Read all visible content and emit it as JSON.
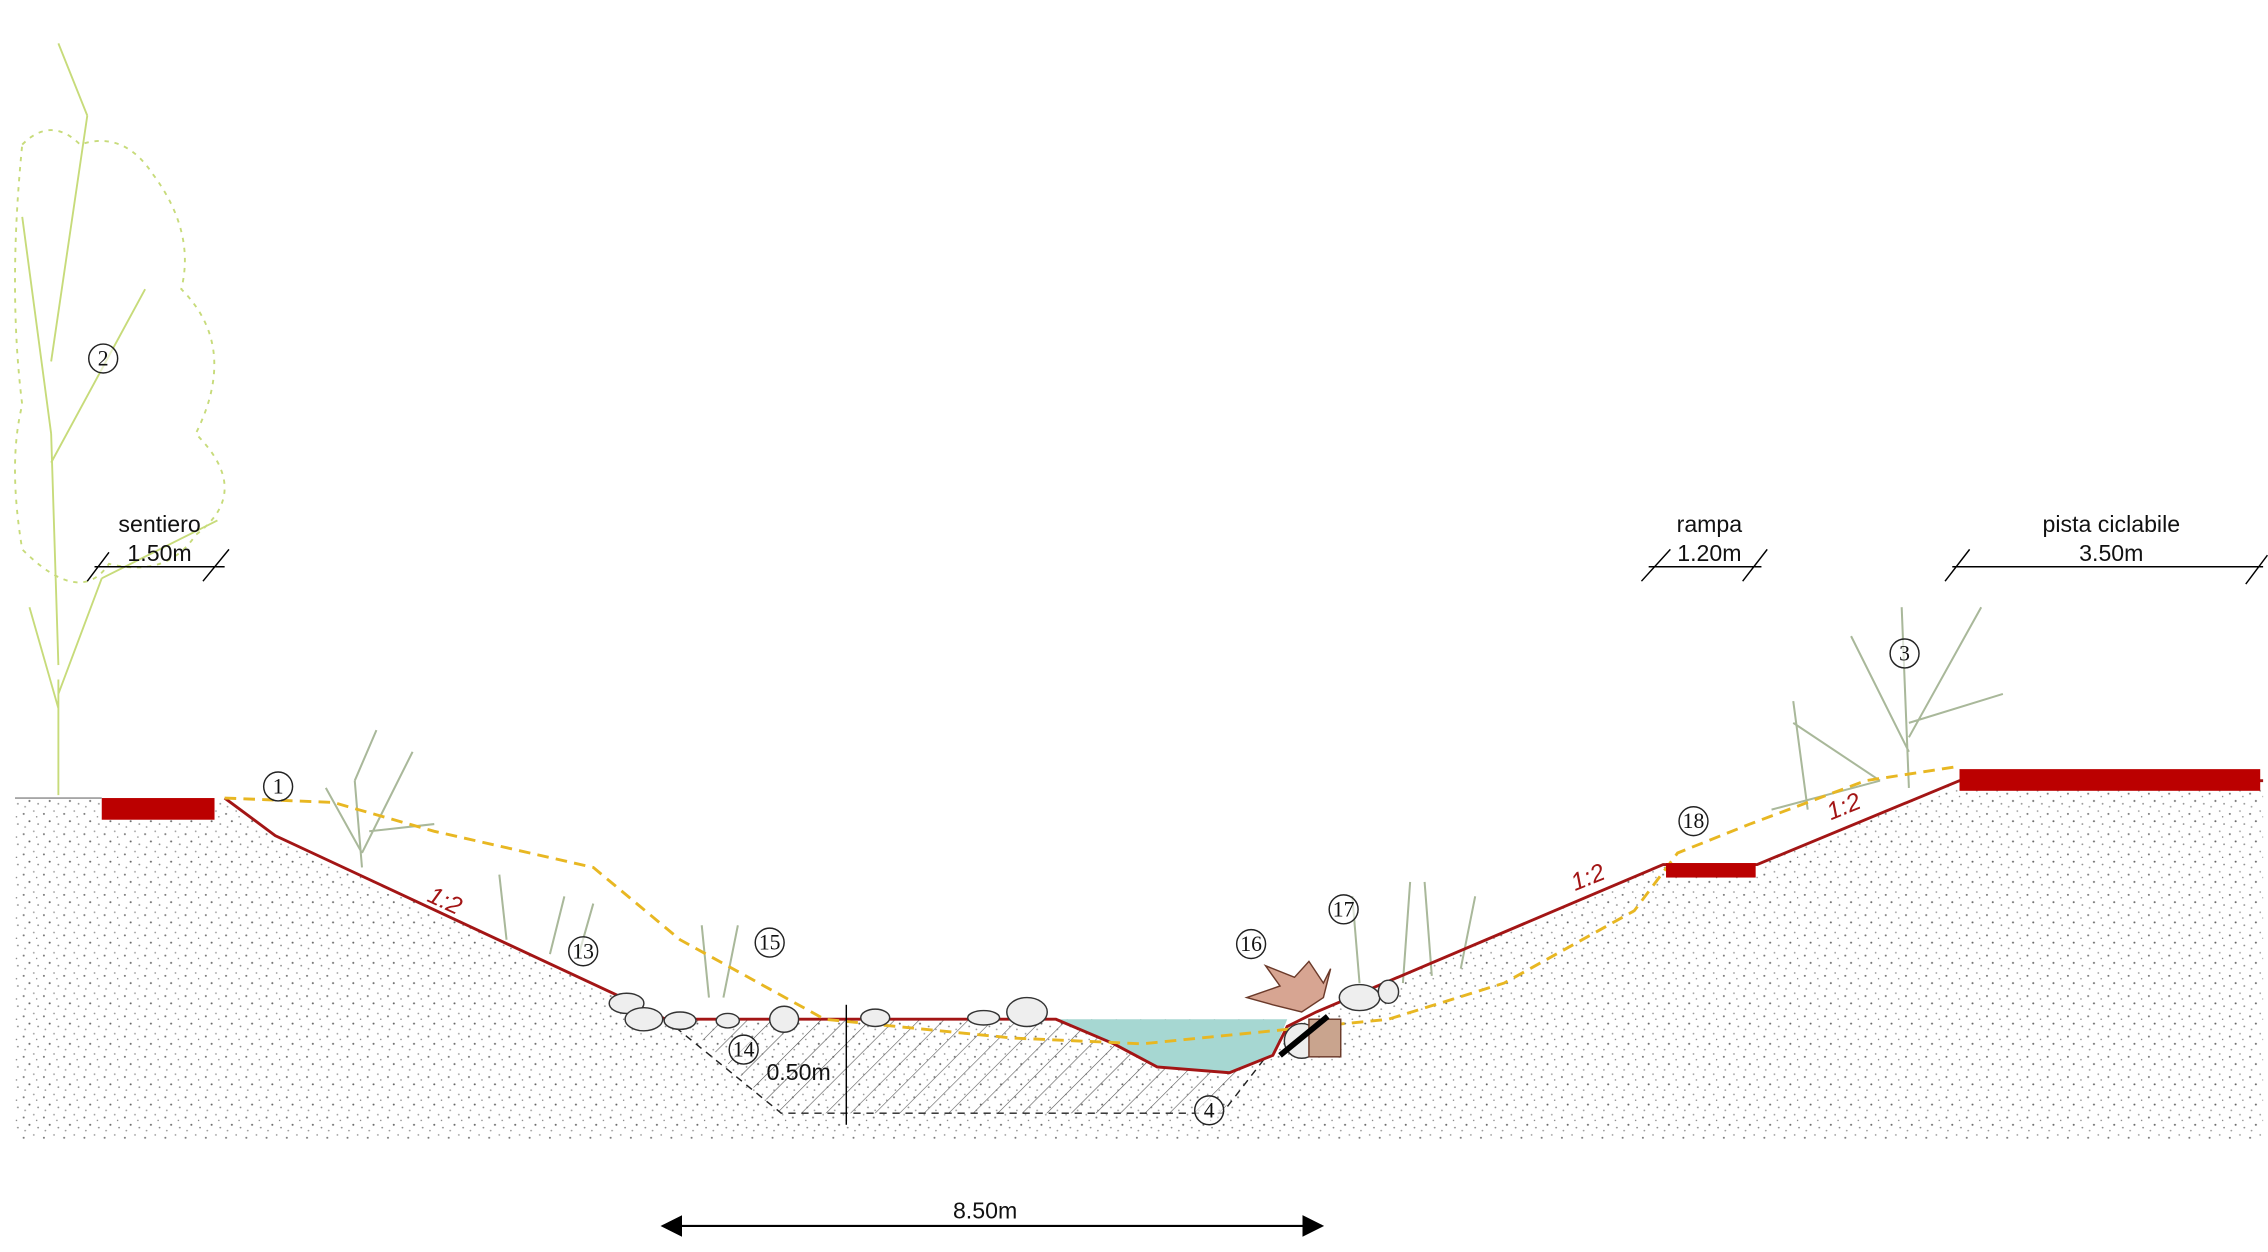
{
  "dimensions": [
    {
      "name": "sentiero",
      "width": "1.50m"
    },
    {
      "name": "rampa",
      "width": "1.20m"
    },
    {
      "name": "pista ciclabile",
      "width": "3.50m"
    }
  ],
  "slopes": [
    "1:2",
    "1:2",
    "1:2"
  ],
  "callouts": [
    "1",
    "2",
    "3",
    "4",
    "13",
    "14",
    "15",
    "16",
    "17",
    "18"
  ],
  "depth": "0.50m",
  "span": "8.50m"
}
